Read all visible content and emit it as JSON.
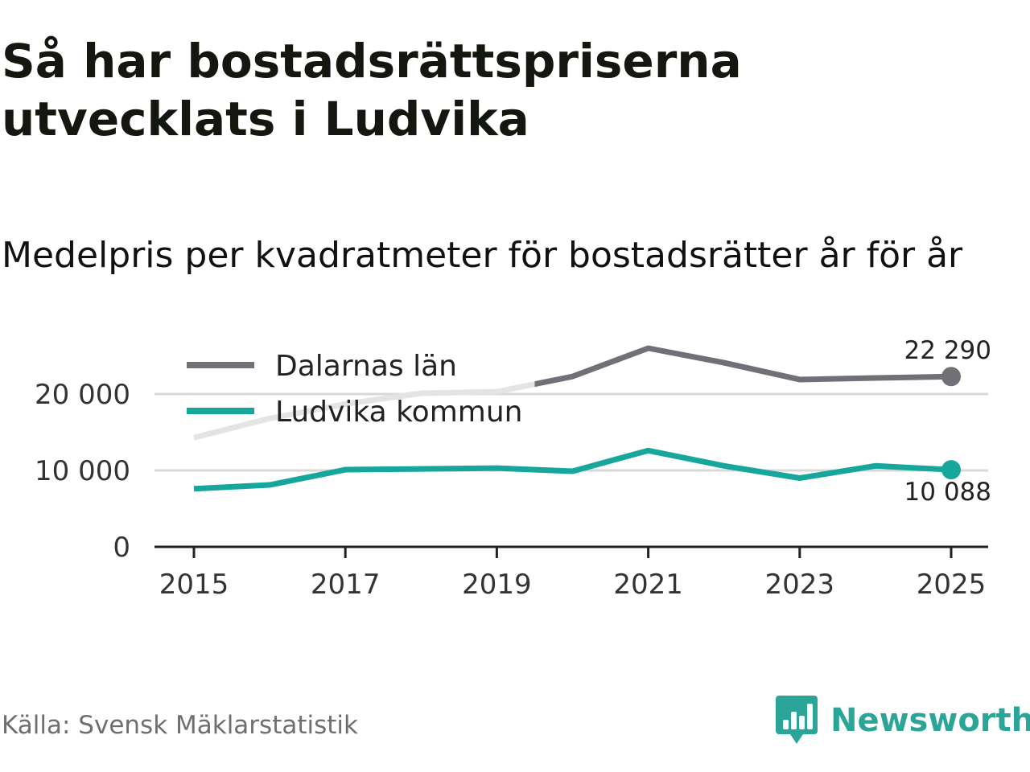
{
  "title": "Så har bostadsrättspriserna utvecklats i Ludvika",
  "subtitle": "Medelpris per kvadratmeter för bostadsrätter år för år",
  "source": "Källa: Svensk Mäklarstatistik",
  "brand": "Newsworthy",
  "colors": {
    "dalarna": "#707077",
    "ludvika": "#16a69b",
    "faded": "#e4e4e4",
    "grid": "#d8d8d8",
    "axis": "#222222",
    "brand": "#2aa597"
  },
  "chart_data": {
    "type": "line",
    "x": [
      2015,
      2016,
      2017,
      2018,
      2019,
      2020,
      2021,
      2022,
      2023,
      2024,
      2025
    ],
    "x_ticks": [
      "2015",
      "2017",
      "2019",
      "2021",
      "2023",
      "2025"
    ],
    "y_ticks": [
      "0",
      "10 000",
      "20 000"
    ],
    "ylim": [
      0,
      28000
    ],
    "grid": true,
    "legend": "top-left",
    "series": [
      {
        "name": "Dalarnas län",
        "key": "dalarna",
        "values": [
          14300,
          16800,
          18700,
          20100,
          20300,
          22300,
          26000,
          24100,
          21900,
          22100,
          22290
        ],
        "end_label": "22 290"
      },
      {
        "name": "Ludvika kommun",
        "key": "ludvika",
        "values": [
          7600,
          8100,
          10100,
          10200,
          10300,
          9900,
          12600,
          10600,
          9000,
          10600,
          10088
        ],
        "end_label": "10 088"
      }
    ]
  }
}
